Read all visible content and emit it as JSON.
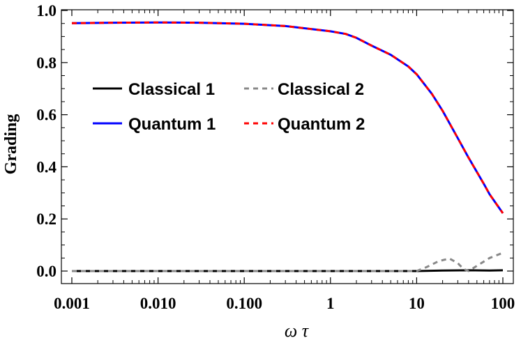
{
  "chart_data": {
    "type": "line",
    "xlabel": "ω τ",
    "ylabel": "Grading",
    "xscale": "log",
    "xlim": [
      0.001,
      100
    ],
    "ylim": [
      0.0,
      1.0
    ],
    "x_ticks": [
      {
        "value": 0.001,
        "label": "0.001"
      },
      {
        "value": 0.01,
        "label": "0.010"
      },
      {
        "value": 0.1,
        "label": "0.100"
      },
      {
        "value": 1,
        "label": "1"
      },
      {
        "value": 10,
        "label": "10"
      },
      {
        "value": 100,
        "label": "100"
      }
    ],
    "y_ticks": [
      {
        "value": 0.0,
        "label": "0.0"
      },
      {
        "value": 0.2,
        "label": "0.2"
      },
      {
        "value": 0.4,
        "label": "0.4"
      },
      {
        "value": 0.6,
        "label": "0.6"
      },
      {
        "value": 0.8,
        "label": "0.8"
      },
      {
        "value": 1.0,
        "label": "1.0"
      }
    ],
    "grid": false,
    "legend_position": "upper-left",
    "series": [
      {
        "name": "Classical 1",
        "color": "#000000",
        "dash": "solid",
        "x": [
          0.001,
          0.01,
          0.1,
          1,
          10,
          20,
          40,
          70,
          100
        ],
        "y": [
          0.0,
          0.0,
          0.0,
          0.0,
          0.0,
          0.002,
          0.003,
          0.002,
          0.003
        ]
      },
      {
        "name": "Classical 2",
        "color": "#888888",
        "dash": "dashed",
        "x": [
          0.001,
          0.01,
          0.1,
          1,
          10,
          13,
          18,
          24,
          30,
          35,
          40,
          50,
          70,
          100
        ],
        "y": [
          0.0,
          0.0,
          0.0,
          0.0,
          0.0,
          0.015,
          0.038,
          0.048,
          0.03,
          0.008,
          0.0,
          0.02,
          0.05,
          0.07
        ]
      },
      {
        "name": "Quantum 1",
        "color": "#0000ff",
        "dash": "solid",
        "x": [
          0.001,
          0.003,
          0.01,
          0.03,
          0.1,
          0.3,
          1,
          1.5,
          2,
          3,
          5,
          8,
          10,
          15,
          20,
          30,
          40,
          50,
          60,
          70,
          85,
          100
        ],
        "y": [
          0.951,
          0.953,
          0.954,
          0.953,
          0.949,
          0.94,
          0.92,
          0.91,
          0.895,
          0.865,
          0.83,
          0.785,
          0.755,
          0.68,
          0.615,
          0.51,
          0.435,
          0.38,
          0.335,
          0.295,
          0.255,
          0.222
        ]
      },
      {
        "name": "Quantum 2",
        "color": "#ff0000",
        "dash": "dashed",
        "x": [
          0.001,
          0.003,
          0.01,
          0.03,
          0.1,
          0.3,
          1,
          1.5,
          2,
          3,
          5,
          8,
          10,
          15,
          20,
          30,
          40,
          50,
          60,
          70,
          85,
          100
        ],
        "y": [
          0.951,
          0.953,
          0.954,
          0.953,
          0.949,
          0.94,
          0.92,
          0.91,
          0.895,
          0.865,
          0.83,
          0.785,
          0.755,
          0.68,
          0.615,
          0.51,
          0.435,
          0.38,
          0.335,
          0.295,
          0.255,
          0.222
        ]
      }
    ]
  }
}
